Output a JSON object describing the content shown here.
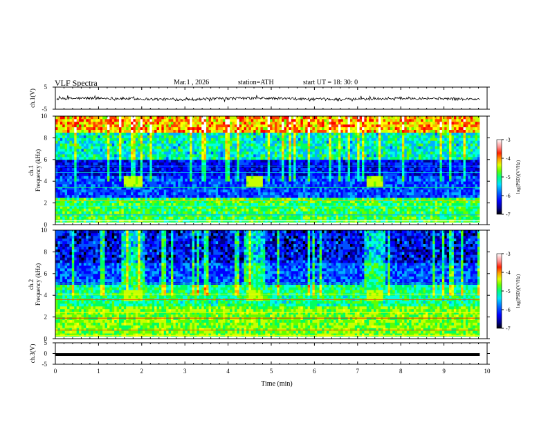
{
  "header": {
    "title": "VLF  Spectra",
    "date": "Mar.1  , 2026",
    "station": "station=ATH",
    "start": "start  UT  =   18: 30: 0"
  },
  "chart_data": [
    {
      "type": "line",
      "panel": "ch1-waveform",
      "ylabel": "ch.1(V)",
      "ylim": [
        -5,
        5
      ],
      "ytick_labels": [
        "5",
        "-5"
      ],
      "xlim": [
        0,
        9.83
      ],
      "series": [
        {
          "name": "ch.1",
          "mean": -0.3,
          "amplitude": 1.2
        }
      ]
    },
    {
      "type": "heatmap",
      "panel": "ch1-spectrogram",
      "ylabel": "ch.1\nFrequency  (kHz)",
      "ylim": [
        0,
        10
      ],
      "ytick_labels": [
        "0",
        "2",
        "4",
        "6",
        "8",
        "10"
      ],
      "xlim": [
        0,
        9.83
      ],
      "colorbar": {
        "label": "log(PSD)(V²/Hz)",
        "ticks": [
          "-3",
          "-4",
          "-5",
          "-6",
          "-7"
        ],
        "range": [
          -7,
          -3
        ]
      },
      "bright_events_min": [
        1.8,
        4.6,
        7.4
      ],
      "event_band_khz": [
        3.6,
        4.4
      ]
    },
    {
      "type": "heatmap",
      "panel": "ch2-spectrogram",
      "ylabel": "ch.2\nFrequency  (kHz)",
      "ylim": [
        0,
        10
      ],
      "ytick_labels": [
        "0",
        "2",
        "4",
        "6",
        "8",
        "10"
      ],
      "xlim": [
        0,
        9.83
      ],
      "colorbar": {
        "label": "log(PSD)(V²/Hz)",
        "ticks": [
          "-3",
          "-4",
          "-5",
          "-6",
          "-7"
        ],
        "range": [
          -7,
          -3
        ]
      },
      "bright_events_min": [
        1.8,
        4.6,
        7.4
      ],
      "event_band_khz": [
        3.6,
        4.4
      ]
    },
    {
      "type": "line",
      "panel": "ch3-waveform",
      "ylabel": "ch.3(V)",
      "ylim": [
        -5,
        5
      ],
      "ytick_labels": [
        "5",
        "0",
        "-5"
      ],
      "xlim": [
        0,
        9.83
      ],
      "series": [
        {
          "name": "ch.3",
          "mean": -0.5,
          "amplitude": 0.05
        }
      ]
    }
  ],
  "xaxis": {
    "label": "Time  (min)",
    "range": [
      0,
      10
    ],
    "tick_labels": [
      "0",
      "1",
      "2",
      "3",
      "4",
      "5",
      "6",
      "7",
      "8",
      "9",
      "10"
    ]
  },
  "colormap": [
    "#000000",
    "#00008b",
    "#0000ff",
    "#0050ff",
    "#00b0ff",
    "#00ffe0",
    "#00ff60",
    "#60ff00",
    "#c8ff00",
    "#ffff00",
    "#ffb000",
    "#ff4000",
    "#ff0000",
    "#ffffff"
  ]
}
